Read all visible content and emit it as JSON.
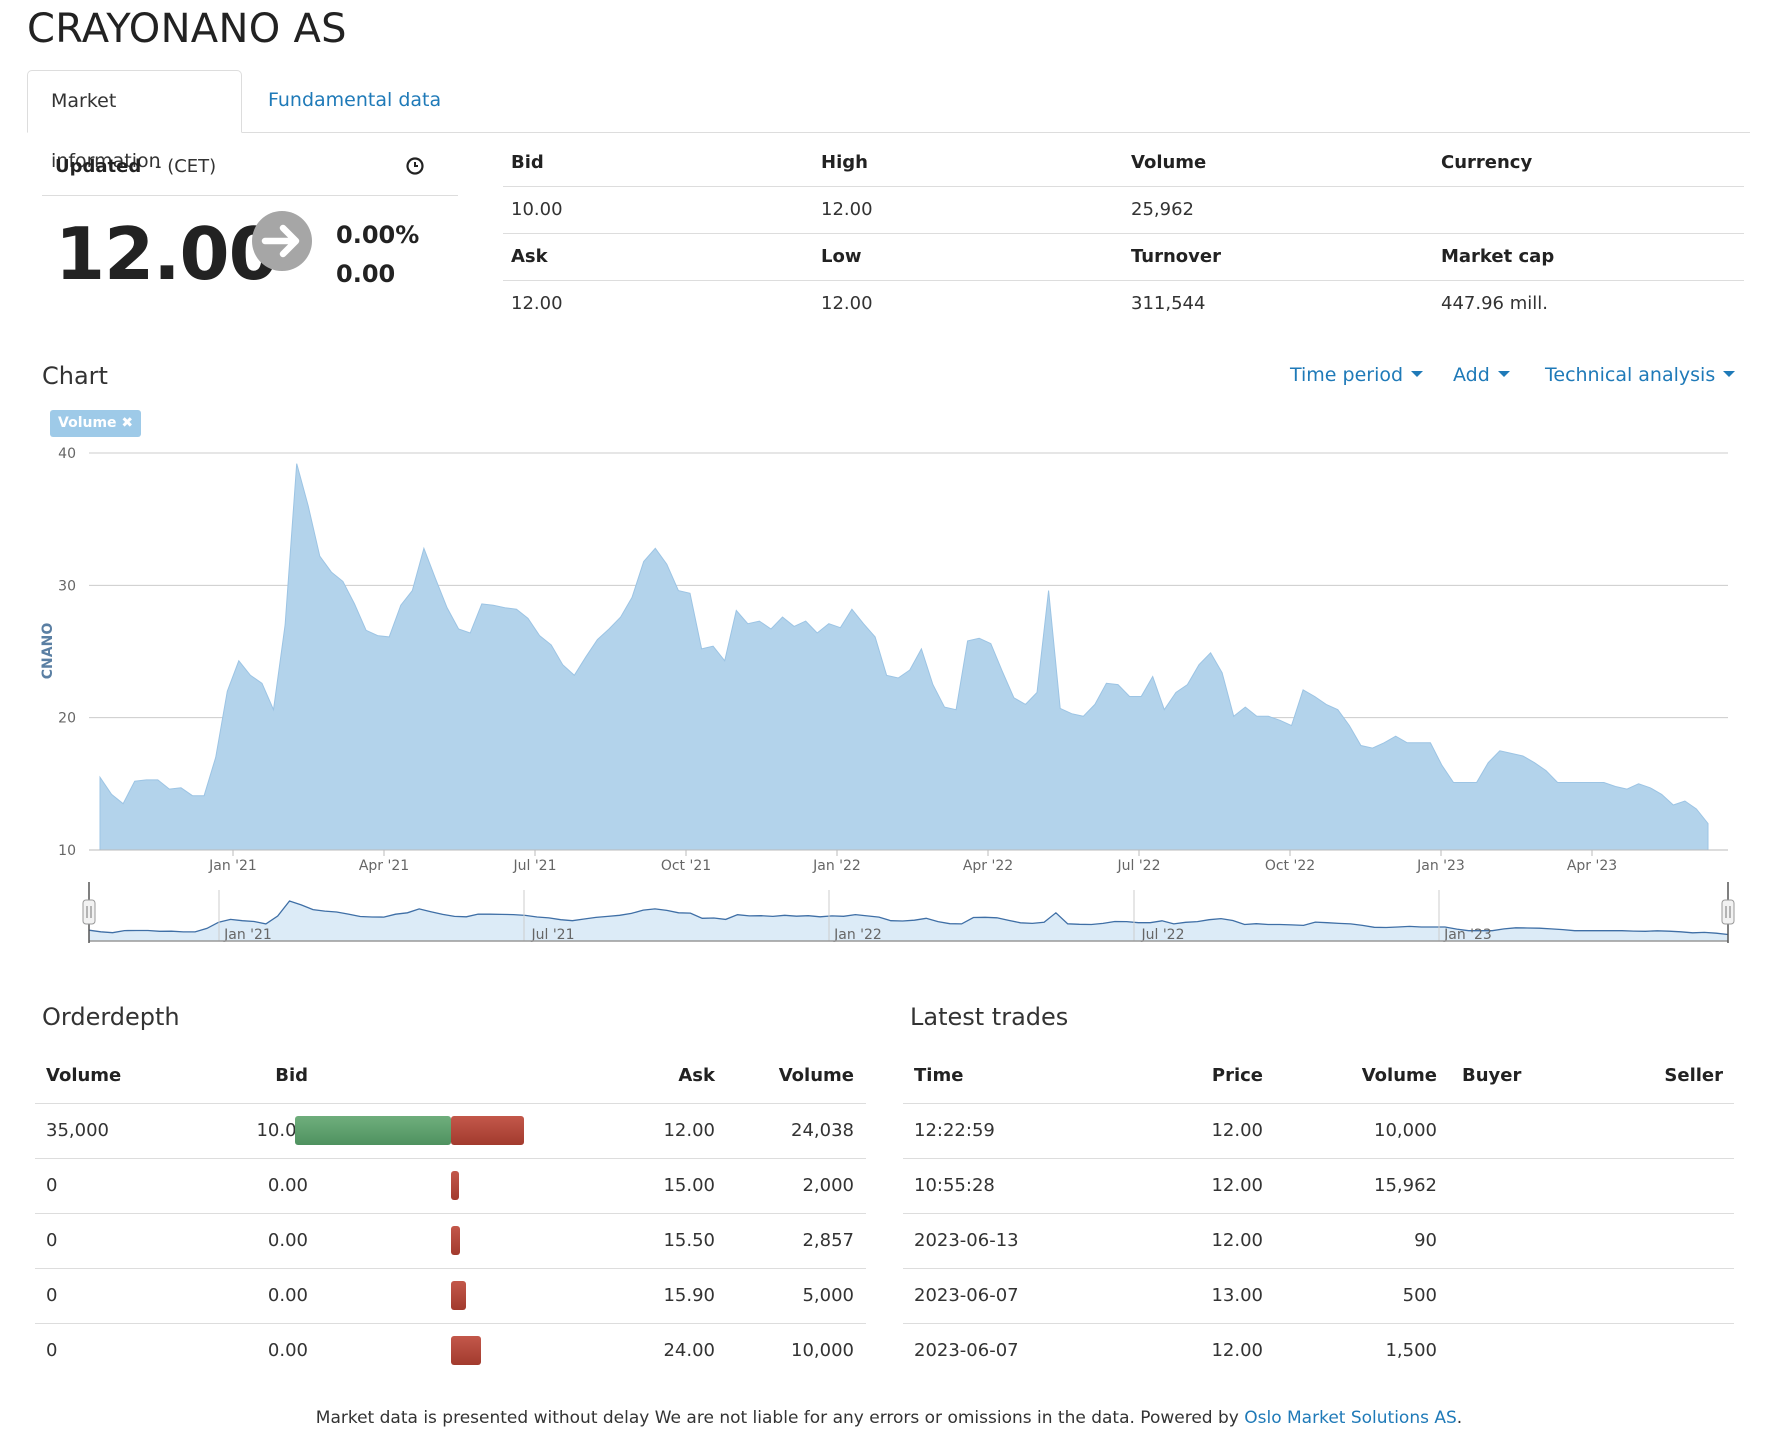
{
  "title": "CRAYONANO AS",
  "tabs": [
    {
      "label": "Market information",
      "active": true
    },
    {
      "label": "Fundamental data",
      "active": false
    }
  ],
  "quote": {
    "updated_label": "Updated",
    "updated_value": "- (CET)",
    "last_price": "12.00",
    "change_pct": "0.00%",
    "change_abs": "0.00",
    "trend_icon": "arrow-right-icon"
  },
  "quote_grid": {
    "headers_row1": [
      "Bid",
      "High",
      "Volume",
      "Currency"
    ],
    "values_row1": [
      "10.00",
      "12.00",
      "25,962",
      ""
    ],
    "headers_row2": [
      "Ask",
      "Low",
      "Turnover",
      "Market cap"
    ],
    "values_row2": [
      "12.00",
      "12.00",
      "311,544",
      "447.96 mill."
    ]
  },
  "chart_section": {
    "title": "Chart",
    "menu": [
      "Time period",
      "Add",
      "Technical analysis"
    ],
    "badge": "Volume"
  },
  "chart_data": {
    "type": "area",
    "ylabel": "CNANO",
    "ylim": [
      10,
      40
    ],
    "yticks": [
      10,
      20,
      30,
      40
    ],
    "xticks": [
      "Jan '21",
      "Apr '21",
      "Jul '21",
      "Oct '21",
      "Jan '22",
      "Apr '22",
      "Jul '22",
      "Oct '22",
      "Jan '23",
      "Apr '23"
    ],
    "navigator_ticks": [
      "Jan '21",
      "Jul '21",
      "Jan '22",
      "Jul '22",
      "Jan '23"
    ],
    "grid": true,
    "color": "#b3d3eb",
    "line_color": "#9cc4e4",
    "series": [
      {
        "values": [
          15.5,
          14.2,
          13.5,
          15.2,
          15.3,
          15.3,
          14.6,
          14.7,
          14.1,
          14.1,
          17.0,
          22.0,
          24.3,
          23.2,
          22.6,
          20.6,
          27.0,
          39.2,
          36.0,
          32.2,
          31.0,
          30.3,
          28.6,
          26.6,
          26.2,
          26.1,
          28.5,
          29.6,
          32.8,
          30.5,
          28.3,
          26.7,
          26.4,
          28.6,
          28.5,
          28.3,
          28.2,
          27.5,
          26.2,
          25.5,
          24.0,
          23.2,
          24.6,
          25.9,
          26.7,
          27.6,
          29.1,
          31.8,
          32.8,
          31.6,
          29.6,
          29.4,
          25.2,
          25.4,
          24.3,
          28.1,
          27.1,
          27.3,
          26.7,
          27.6,
          26.9,
          27.3,
          26.4,
          27.1,
          26.8,
          28.2,
          27.1,
          26.1,
          23.2,
          23.0,
          23.6,
          25.2,
          22.5,
          20.8,
          20.6,
          25.8,
          26.0,
          25.6,
          23.5,
          21.5,
          21.0,
          21.9,
          29.6,
          20.7,
          20.3,
          20.1,
          21.0,
          22.6,
          22.5,
          21.6,
          21.6,
          23.1,
          20.6,
          21.9,
          22.5,
          24.0,
          24.9,
          23.4,
          20.1,
          20.8,
          20.1,
          20.1,
          19.8,
          19.4,
          22.1,
          21.6,
          21.0,
          20.6,
          19.4,
          17.9,
          17.7,
          18.1,
          18.6,
          18.1,
          18.1,
          18.1,
          16.4,
          15.1,
          15.1,
          15.1,
          16.6,
          17.5,
          17.3,
          17.1,
          16.6,
          16.0,
          15.1,
          15.1,
          15.1,
          15.1,
          15.1,
          14.8,
          14.6,
          15.0,
          14.7,
          14.2,
          13.4,
          13.7,
          13.1,
          12.0
        ]
      }
    ]
  },
  "orderdepth": {
    "title": "Orderdepth",
    "headers": [
      "Volume",
      "Bid",
      "Ask",
      "Volume"
    ],
    "rows": [
      {
        "bid_volume": "35,000",
        "bid": "10.00",
        "ask": "12.00",
        "ask_volume": "24,038",
        "bid_qty": 35000,
        "ask_qty": 24038
      },
      {
        "bid_volume": "0",
        "bid": "0.00",
        "ask": "15.00",
        "ask_volume": "2,000",
        "bid_qty": 0,
        "ask_qty": 2000
      },
      {
        "bid_volume": "0",
        "bid": "0.00",
        "ask": "15.50",
        "ask_volume": "2,857",
        "bid_qty": 0,
        "ask_qty": 2857
      },
      {
        "bid_volume": "0",
        "bid": "0.00",
        "ask": "15.90",
        "ask_volume": "5,000",
        "bid_qty": 0,
        "ask_qty": 5000
      },
      {
        "bid_volume": "0",
        "bid": "0.00",
        "ask": "24.00",
        "ask_volume": "10,000",
        "bid_qty": 0,
        "ask_qty": 10000
      }
    ]
  },
  "latest_trades": {
    "title": "Latest trades",
    "headers": [
      "Time",
      "Price",
      "Volume",
      "Buyer",
      "Seller"
    ],
    "rows": [
      {
        "time": "12:22:59",
        "price": "12.00",
        "volume": "10,000",
        "buyer": "",
        "seller": ""
      },
      {
        "time": "10:55:28",
        "price": "12.00",
        "volume": "15,962",
        "buyer": "",
        "seller": ""
      },
      {
        "time": "2023-06-13",
        "price": "12.00",
        "volume": "90",
        "buyer": "",
        "seller": ""
      },
      {
        "time": "2023-06-07",
        "price": "13.00",
        "volume": "500",
        "buyer": "",
        "seller": ""
      },
      {
        "time": "2023-06-07",
        "price": "12.00",
        "volume": "1,500",
        "buyer": "",
        "seller": ""
      }
    ]
  },
  "footer": {
    "text": "Market data is presented without delay We are not liable for any errors or omissions in the data. Powered by ",
    "link": "Oslo Market Solutions AS",
    "suffix": "."
  }
}
